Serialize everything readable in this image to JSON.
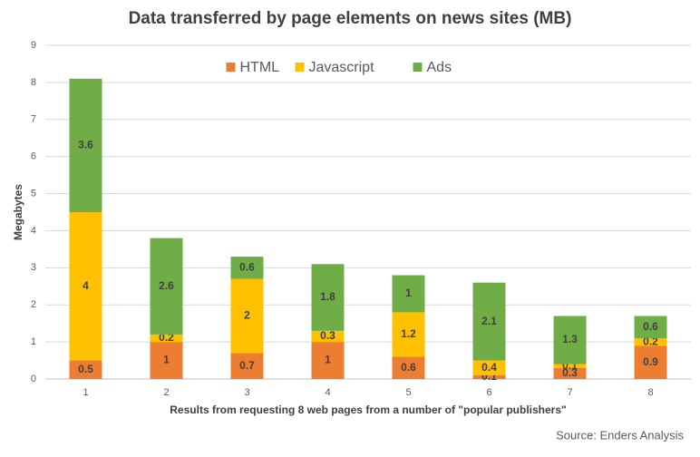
{
  "chart_data": {
    "type": "stacked-bar",
    "title": "Data transferred by page elements on news sites (MB)",
    "x_label": "Results from requesting 8 web pages from a number of \"popular publishers\"",
    "y_label": "Megabytes",
    "source": "Source: Enders Analysis",
    "categories": [
      "1",
      "2",
      "3",
      "4",
      "5",
      "6",
      "7",
      "8"
    ],
    "series": [
      {
        "name": "HTML",
        "color": "#ed7d31",
        "values": [
          0.5,
          1,
          0.7,
          1,
          0.6,
          0.1,
          0.3,
          0.9
        ]
      },
      {
        "name": "Javascript",
        "color": "#ffc000",
        "values": [
          4,
          0.2,
          2,
          0.3,
          1.2,
          0.4,
          0.1,
          0.2
        ]
      },
      {
        "name": "Ads",
        "color": "#70ad47",
        "values": [
          3.6,
          2.6,
          0.6,
          1.8,
          1,
          2.1,
          1.3,
          0.6
        ]
      }
    ],
    "ylim": [
      0,
      9
    ],
    "yticks": [
      0,
      1,
      2,
      3,
      4,
      5,
      6,
      7,
      8,
      9
    ],
    "grid": true,
    "legend": "top",
    "data_labels": true
  }
}
